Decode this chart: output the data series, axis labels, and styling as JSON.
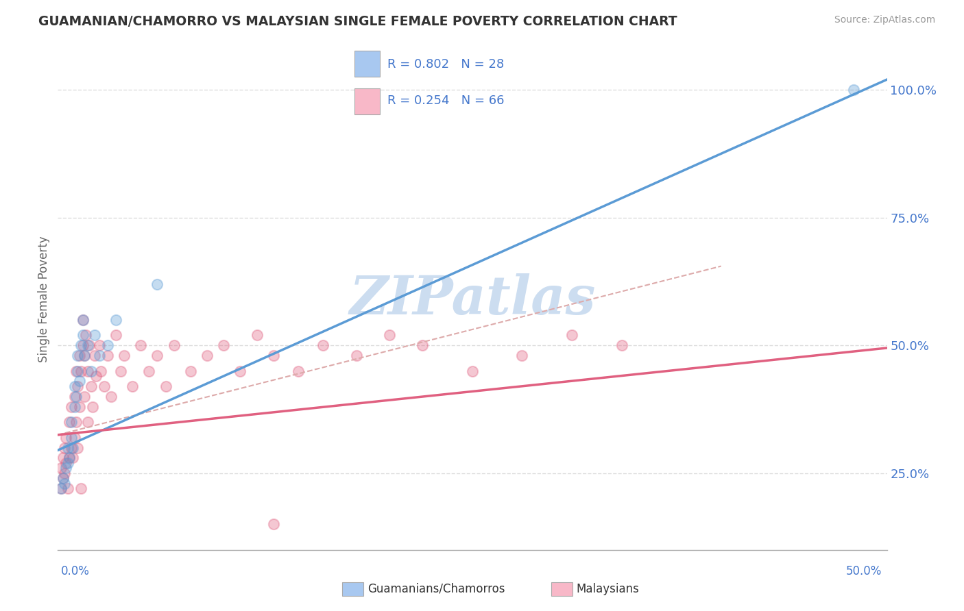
{
  "title": "GUAMANIAN/CHAMORRO VS MALAYSIAN SINGLE FEMALE POVERTY CORRELATION CHART",
  "source": "Source: ZipAtlas.com",
  "ylabel": "Single Female Poverty",
  "yticks": [
    0.25,
    0.5,
    0.75,
    1.0
  ],
  "ytick_labels": [
    "25.0%",
    "50.0%",
    "75.0%",
    "100.0%"
  ],
  "xlim": [
    0.0,
    0.5
  ],
  "ylim": [
    0.1,
    1.08
  ],
  "legend_color1": "#a8c8f0",
  "legend_color2": "#f8b8c8",
  "blue_color": "#5b9bd5",
  "pink_color": "#e06080",
  "watermark": "ZIPatlas",
  "blue_line_x0": 0.0,
  "blue_line_y0": 0.295,
  "blue_line_x1": 0.5,
  "blue_line_y1": 1.02,
  "pink_line_x0": 0.0,
  "pink_line_y0": 0.325,
  "pink_line_x1": 0.5,
  "pink_line_y1": 0.495,
  "dash_line_x0": 0.0,
  "dash_line_y0": 0.325,
  "dash_line_x1": 0.4,
  "dash_line_y1": 0.655,
  "guamanian_x": [
    0.002,
    0.003,
    0.004,
    0.005,
    0.006,
    0.006,
    0.007,
    0.008,
    0.008,
    0.009,
    0.01,
    0.01,
    0.011,
    0.012,
    0.012,
    0.013,
    0.014,
    0.015,
    0.015,
    0.016,
    0.018,
    0.02,
    0.022,
    0.025,
    0.03,
    0.035,
    0.06,
    0.48
  ],
  "guamanian_y": [
    0.22,
    0.24,
    0.23,
    0.26,
    0.27,
    0.3,
    0.28,
    0.32,
    0.35,
    0.3,
    0.38,
    0.42,
    0.4,
    0.45,
    0.48,
    0.43,
    0.5,
    0.52,
    0.55,
    0.48,
    0.5,
    0.45,
    0.52,
    0.48,
    0.5,
    0.55,
    0.62,
    1.0
  ],
  "malaysian_x": [
    0.002,
    0.002,
    0.003,
    0.003,
    0.004,
    0.004,
    0.005,
    0.005,
    0.006,
    0.007,
    0.007,
    0.008,
    0.008,
    0.009,
    0.01,
    0.01,
    0.011,
    0.011,
    0.012,
    0.012,
    0.013,
    0.013,
    0.014,
    0.014,
    0.015,
    0.015,
    0.016,
    0.016,
    0.017,
    0.018,
    0.018,
    0.019,
    0.02,
    0.021,
    0.022,
    0.023,
    0.025,
    0.026,
    0.028,
    0.03,
    0.032,
    0.035,
    0.038,
    0.04,
    0.045,
    0.05,
    0.055,
    0.06,
    0.065,
    0.07,
    0.08,
    0.09,
    0.1,
    0.11,
    0.12,
    0.13,
    0.145,
    0.16,
    0.18,
    0.2,
    0.22,
    0.25,
    0.28,
    0.31,
    0.34,
    0.13
  ],
  "malaysian_y": [
    0.22,
    0.26,
    0.24,
    0.28,
    0.25,
    0.3,
    0.27,
    0.32,
    0.22,
    0.28,
    0.35,
    0.3,
    0.38,
    0.28,
    0.32,
    0.4,
    0.35,
    0.45,
    0.3,
    0.42,
    0.48,
    0.38,
    0.22,
    0.45,
    0.5,
    0.55,
    0.48,
    0.4,
    0.52,
    0.45,
    0.35,
    0.5,
    0.42,
    0.38,
    0.48,
    0.44,
    0.5,
    0.45,
    0.42,
    0.48,
    0.4,
    0.52,
    0.45,
    0.48,
    0.42,
    0.5,
    0.45,
    0.48,
    0.42,
    0.5,
    0.45,
    0.48,
    0.5,
    0.45,
    0.52,
    0.48,
    0.45,
    0.5,
    0.48,
    0.52,
    0.5,
    0.45,
    0.48,
    0.52,
    0.5,
    0.15
  ],
  "bg_color": "#ffffff",
  "grid_color": "#dddddd",
  "tick_color": "#4477cc",
  "title_color": "#333333",
  "watermark_color": "#ccddf0"
}
